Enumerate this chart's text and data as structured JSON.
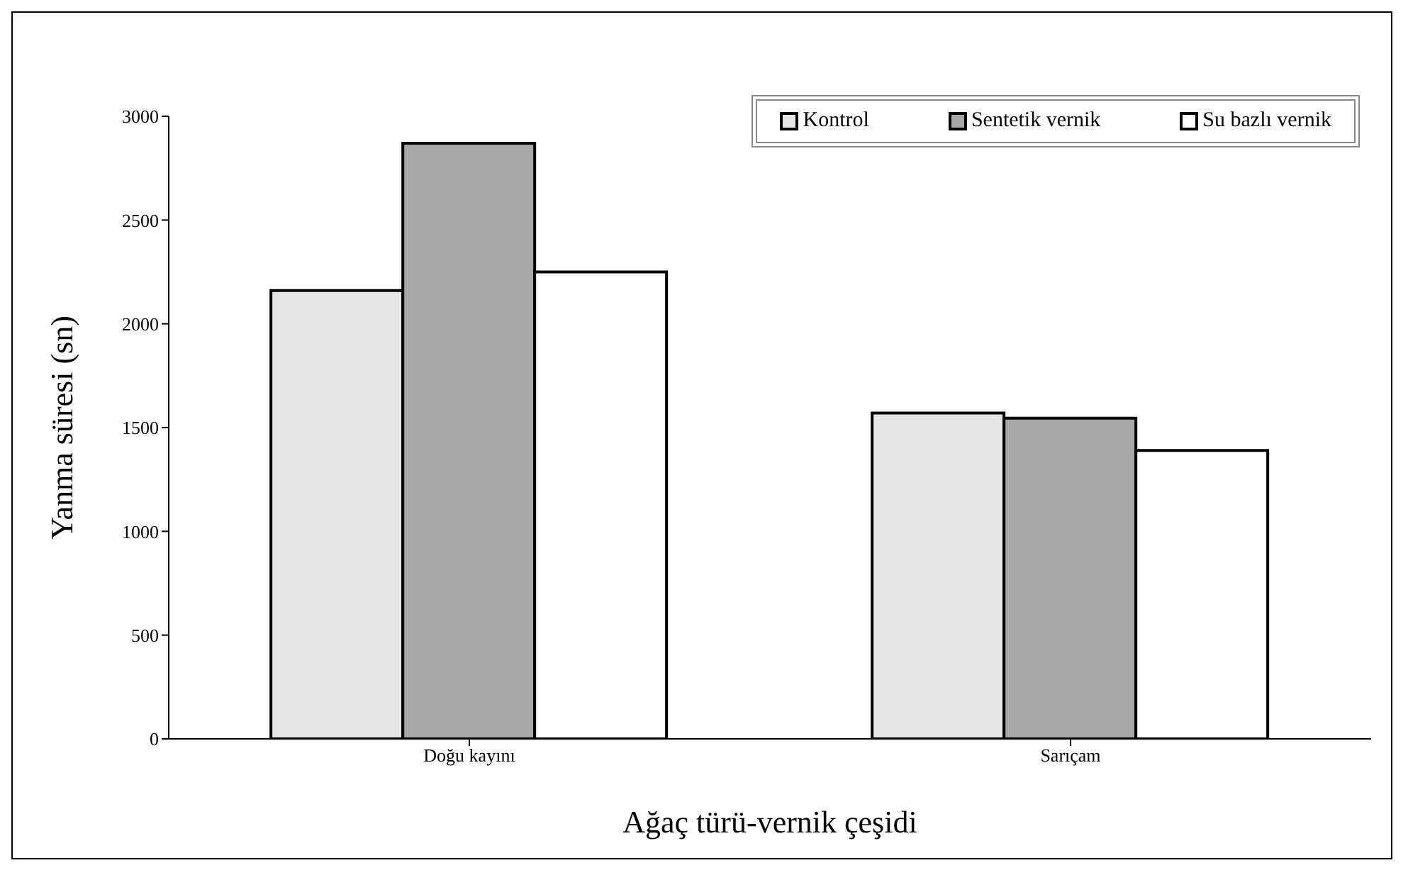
{
  "chart_data": {
    "type": "bar",
    "xlabel": "Ağaç türü-vernik çeşidi",
    "ylabel": "Yanma süresi (sn)",
    "categories": [
      "Doğu kayını",
      "Sarıçam"
    ],
    "series": [
      {
        "name": "Kontrol",
        "color": "#e6e6e6",
        "values": [
          2160,
          1570
        ]
      },
      {
        "name": "Sentetik vernik",
        "color": "#a8a8a8",
        "values": [
          2870,
          1545
        ]
      },
      {
        "name": "Su bazlı vernik",
        "color": "#ffffff",
        "values": [
          2250,
          1390
        ]
      }
    ],
    "ylim": [
      0,
      3000
    ],
    "yticks": [
      0,
      500,
      1000,
      1500,
      2000,
      2500,
      3000
    ],
    "grid": false,
    "legend": "top right"
  }
}
